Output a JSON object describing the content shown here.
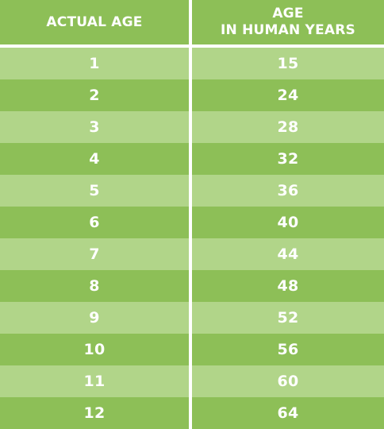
{
  "table": {
    "headers": {
      "actual_age": "ACTUAL AGE",
      "human_age_line1": "AGE",
      "human_age_line2": "IN HUMAN YEARS"
    },
    "rows": [
      {
        "actual": "1",
        "human": "15"
      },
      {
        "actual": "2",
        "human": "24"
      },
      {
        "actual": "3",
        "human": "28"
      },
      {
        "actual": "4",
        "human": "32"
      },
      {
        "actual": "5",
        "human": "36"
      },
      {
        "actual": "6",
        "human": "40"
      },
      {
        "actual": "7",
        "human": "44"
      },
      {
        "actual": "8",
        "human": "48"
      },
      {
        "actual": "9",
        "human": "52"
      },
      {
        "actual": "10",
        "human": "56"
      },
      {
        "actual": "11",
        "human": "60"
      },
      {
        "actual": "12",
        "human": "64"
      }
    ],
    "colors": {
      "header_bg": "#8dbf57",
      "row_light": "#b1d589",
      "row_dark": "#8dbf57",
      "divider": "#ffffff",
      "text": "#ffffff"
    }
  }
}
